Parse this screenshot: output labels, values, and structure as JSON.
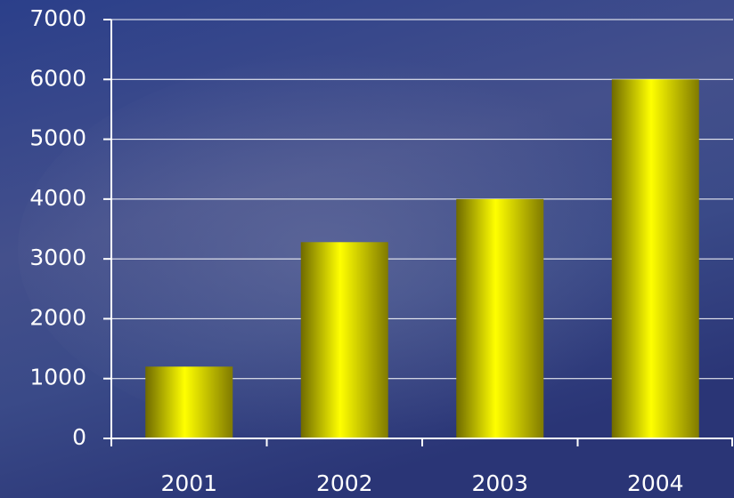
{
  "chart_data": {
    "type": "bar",
    "categories": [
      "2001",
      "2002",
      "2003",
      "2004"
    ],
    "values": [
      1200,
      3280,
      4000,
      6000
    ],
    "color": "#ffff00",
    "ylim": [
      0,
      7000
    ],
    "yticks": [
      0,
      1000,
      2000,
      3000,
      4000,
      5000,
      6000,
      7000
    ],
    "grid": true
  }
}
